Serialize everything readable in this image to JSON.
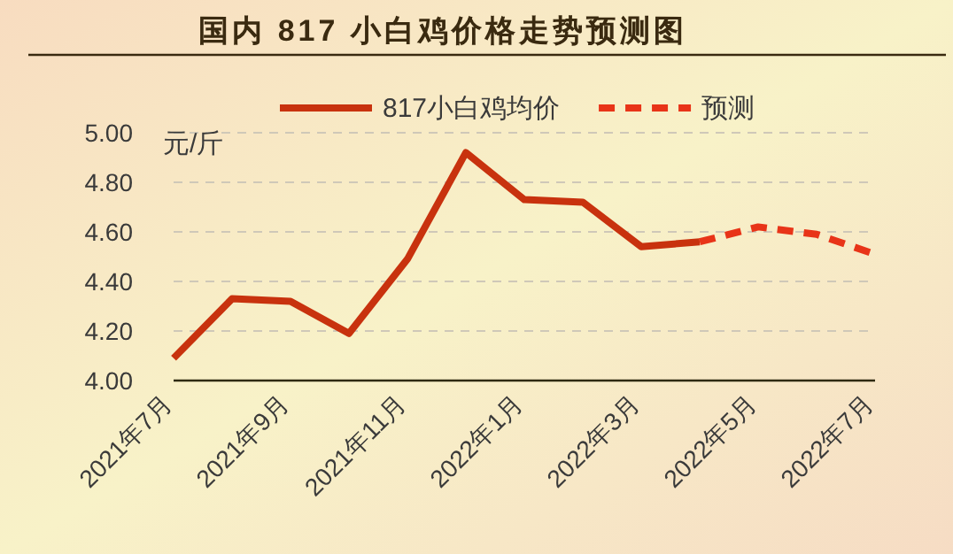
{
  "chart_data": {
    "type": "line",
    "title": "国内 817 小白鸡价格走势预测图",
    "ylabel": "元/斤",
    "categories": [
      "2021年7月",
      null,
      "2021年9月",
      null,
      "2021年11月",
      null,
      "2022年1月",
      null,
      "2022年3月",
      null,
      "2022年5月",
      null,
      "2022年7月"
    ],
    "series": [
      {
        "name": "817小白鸡均价",
        "color": "#c8320e",
        "line_style": "solid",
        "values": [
          4.09,
          4.33,
          4.32,
          4.19,
          4.49,
          4.92,
          4.73,
          4.72,
          4.54,
          4.56,
          null,
          null,
          null
        ]
      },
      {
        "name": "预测",
        "color": "#e83418",
        "line_style": "dashed",
        "values": [
          null,
          null,
          null,
          null,
          null,
          null,
          null,
          null,
          null,
          4.56,
          4.62,
          4.59,
          4.51
        ]
      }
    ],
    "ylim": [
      4,
      5
    ],
    "yticks": [
      {
        "value": 4,
        "label": "4.00"
      },
      {
        "value": 4.2,
        "label": "4.20"
      },
      {
        "value": 4.4,
        "label": "4.40"
      },
      {
        "value": 4.6,
        "label": "4.60"
      },
      {
        "value": 4.8,
        "label": "4.80"
      },
      {
        "value": 5,
        "label": "5.00"
      }
    ],
    "grid": "y",
    "legend": "top",
    "marker": "none"
  }
}
